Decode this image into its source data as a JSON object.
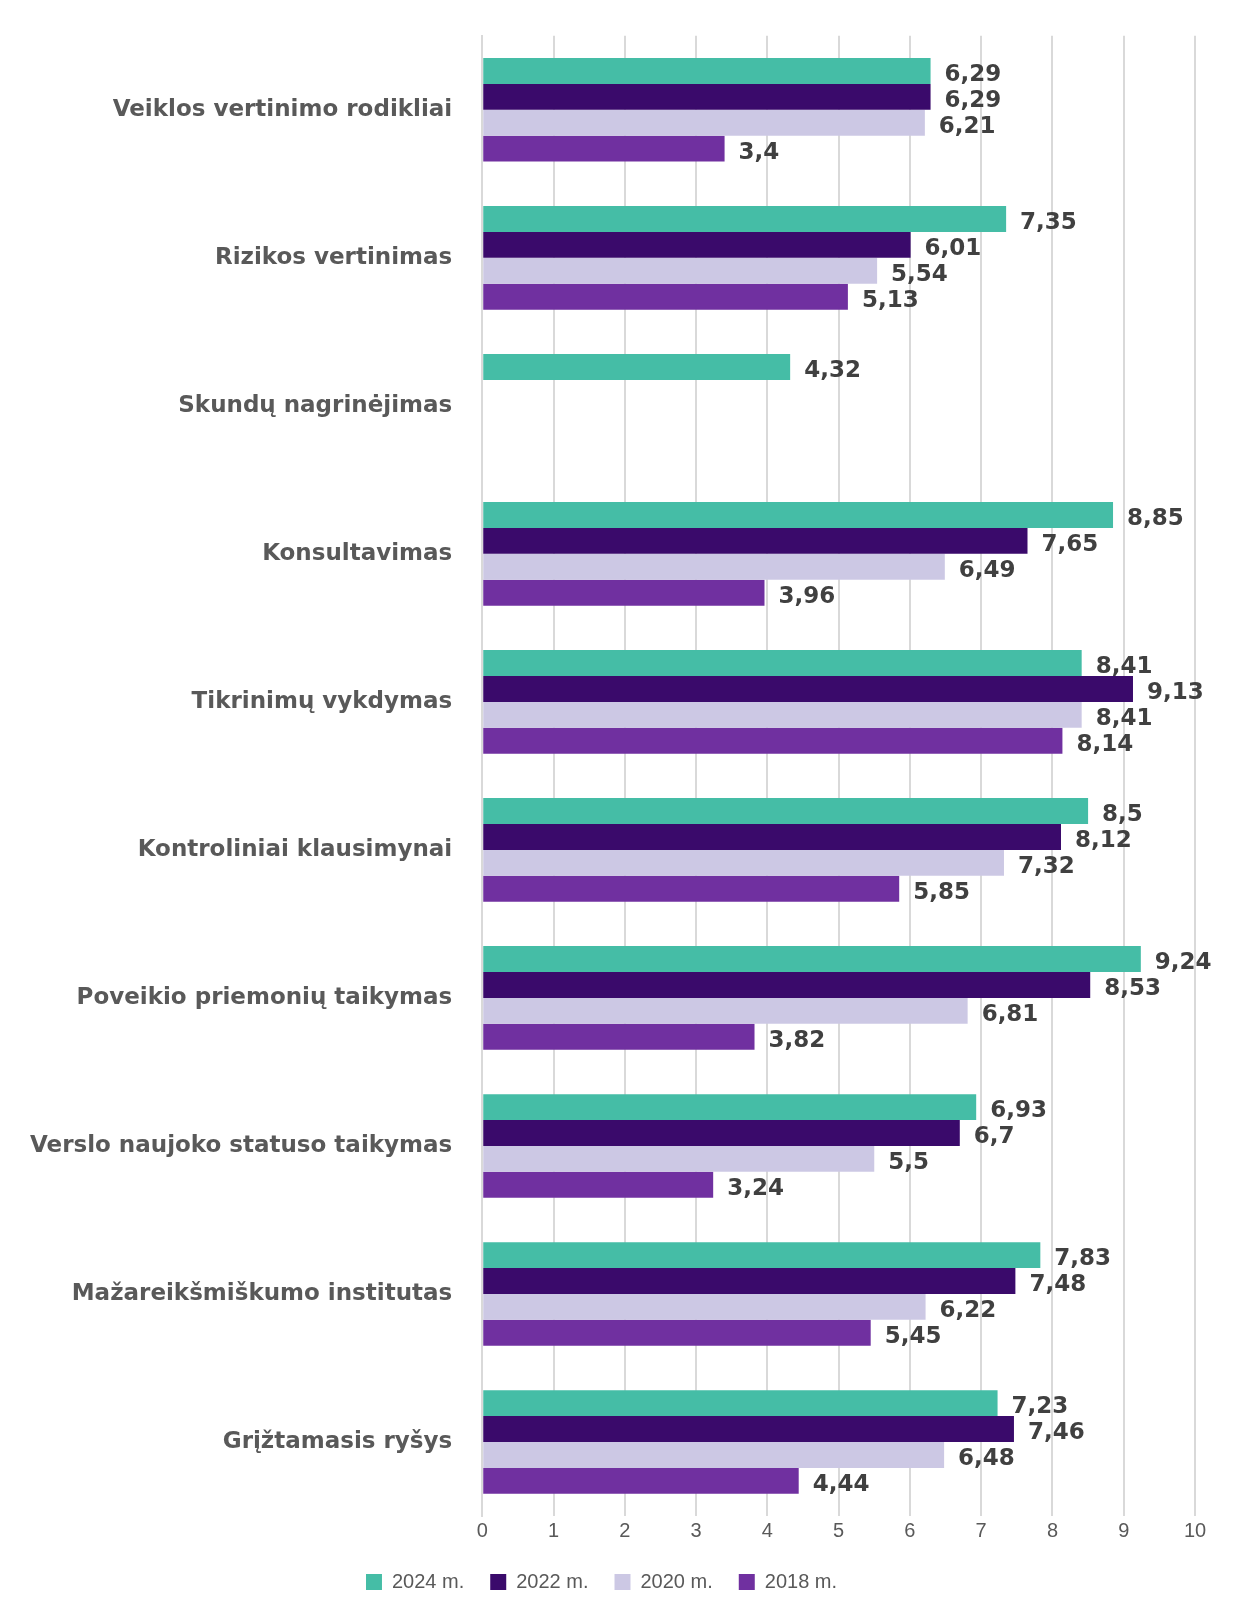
{
  "chart_data": {
    "type": "bar",
    "orientation": "horizontal",
    "categories": [
      "Veiklos vertinimo rodikliai",
      "Rizikos vertinimas",
      "Skundų nagrinėjimas",
      "Konsultavimas",
      "Tikrinimų vykdymas",
      "Kontroliniai klausimynai",
      "Poveikio priemonių taikymas",
      "Verslo naujoko statuso taikymas",
      "Mažareikšmiškumo institutas",
      "Grįžtamasis ryšys"
    ],
    "series": [
      {
        "name": "2024 m.",
        "color": "#45bda6",
        "values": [
          6.29,
          7.35,
          4.32,
          8.85,
          8.41,
          8.5,
          9.24,
          6.93,
          7.83,
          7.23
        ],
        "value_labels": [
          "6,29",
          "7,35",
          "4,32",
          "8,85",
          "8,41",
          "8,5",
          "9,24",
          "6,93",
          "7,83",
          "7,23"
        ]
      },
      {
        "name": "2022 m.",
        "color": "#3a0a6b",
        "values": [
          6.29,
          6.01,
          null,
          7.65,
          9.13,
          8.12,
          8.53,
          6.7,
          7.48,
          7.46
        ],
        "value_labels": [
          "6,29",
          "6,01",
          null,
          "7,65",
          "9,13",
          "8,12",
          "8,53",
          "6,7",
          "7,48",
          "7,46"
        ]
      },
      {
        "name": "2020 m.",
        "color": "#ccc8e4",
        "values": [
          6.21,
          5.54,
          null,
          6.49,
          8.41,
          7.32,
          6.81,
          5.5,
          6.22,
          6.48
        ],
        "value_labels": [
          "6,21",
          "5,54",
          null,
          "6,49",
          "8,41",
          "7,32",
          "6,81",
          "5,5",
          "6,22",
          "6,48"
        ]
      },
      {
        "name": "2018 m.",
        "color": "#7030a0",
        "values": [
          3.4,
          5.13,
          null,
          3.96,
          8.14,
          5.85,
          3.82,
          3.24,
          5.45,
          4.44
        ],
        "value_labels": [
          "3,4",
          "5,13",
          null,
          "3,96",
          "8,14",
          "5,85",
          "3,82",
          "3,24",
          "5,45",
          "4,44"
        ]
      }
    ],
    "xlim": [
      0,
      10
    ],
    "xticks": [
      0,
      1,
      2,
      3,
      4,
      5,
      6,
      7,
      8,
      9,
      10
    ],
    "grid": "x",
    "legend": "bottom"
  }
}
